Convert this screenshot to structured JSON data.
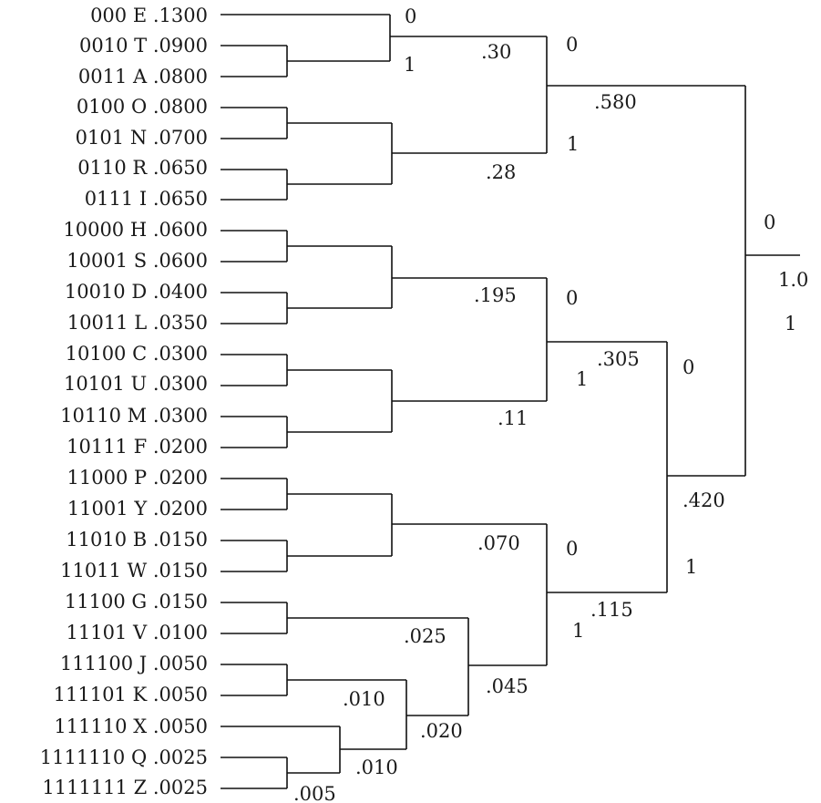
{
  "diagram": {
    "title": "",
    "leaves": [
      {
        "code": "000",
        "symbol": "E",
        "prob": ".1300"
      },
      {
        "code": "0010",
        "symbol": "T",
        "prob": ".0900"
      },
      {
        "code": "0011",
        "symbol": "A",
        "prob": ".0800"
      },
      {
        "code": "0100",
        "symbol": "O",
        "prob": ".0800"
      },
      {
        "code": "0101",
        "symbol": "N",
        "prob": ".0700"
      },
      {
        "code": "0110",
        "symbol": "R",
        "prob": ".0650"
      },
      {
        "code": "0111",
        "symbol": "I",
        "prob": ".0650"
      },
      {
        "code": "10000",
        "symbol": "H",
        "prob": ".0600"
      },
      {
        "code": "10001",
        "symbol": "S",
        "prob": ".0600"
      },
      {
        "code": "10010",
        "symbol": "D",
        "prob": ".0400"
      },
      {
        "code": "10011",
        "symbol": "L",
        "prob": ".0350"
      },
      {
        "code": "10100",
        "symbol": "C",
        "prob": ".0300"
      },
      {
        "code": "10101",
        "symbol": "U",
        "prob": ".0300"
      },
      {
        "code": "10110",
        "symbol": "M",
        "prob": ".0300"
      },
      {
        "code": "10111",
        "symbol": "F",
        "prob": ".0200"
      },
      {
        "code": "11000",
        "symbol": "P",
        "prob": ".0200"
      },
      {
        "code": "11001",
        "symbol": "Y",
        "prob": ".0200"
      },
      {
        "code": "11010",
        "symbol": "B",
        "prob": ".0150"
      },
      {
        "code": "11011",
        "symbol": "W",
        "prob": ".0150"
      },
      {
        "code": "11100",
        "symbol": "G",
        "prob": ".0150"
      },
      {
        "code": "11101",
        "symbol": "V",
        "prob": ".0100"
      },
      {
        "code": "111100",
        "symbol": "J",
        "prob": ".0050"
      },
      {
        "code": "111101",
        "symbol": "K",
        "prob": ".0050"
      },
      {
        "code": "111110",
        "symbol": "X",
        "prob": ".0050"
      },
      {
        "code": "1111110",
        "symbol": "Q",
        "prob": ".0025"
      },
      {
        "code": "1111111",
        "symbol": "Z",
        "prob": ".0025"
      }
    ],
    "node_labels": {
      "e_bit0": "0",
      "ta_bit1": "1",
      "n30": ".30",
      "n28": ".28",
      "top_bit0": "0",
      "top_bit1": "1",
      "n580": ".580",
      "root_bit0": "0",
      "root": "1.0",
      "root_bit1": "1",
      "n195": ".195",
      "n11": ".11",
      "mid_bit0": "0",
      "mid_bit1": "1",
      "n305": ".305",
      "right_bit0": "0",
      "n420": ".420",
      "right_bit1": "1",
      "n070": ".070",
      "low_bit0": "0",
      "n115": ".115",
      "low_bit1": "1",
      "n025": ".025",
      "n045": ".045",
      "n010a": ".010",
      "n020": ".020",
      "n010b": ".010",
      "n005": ".005"
    }
  }
}
